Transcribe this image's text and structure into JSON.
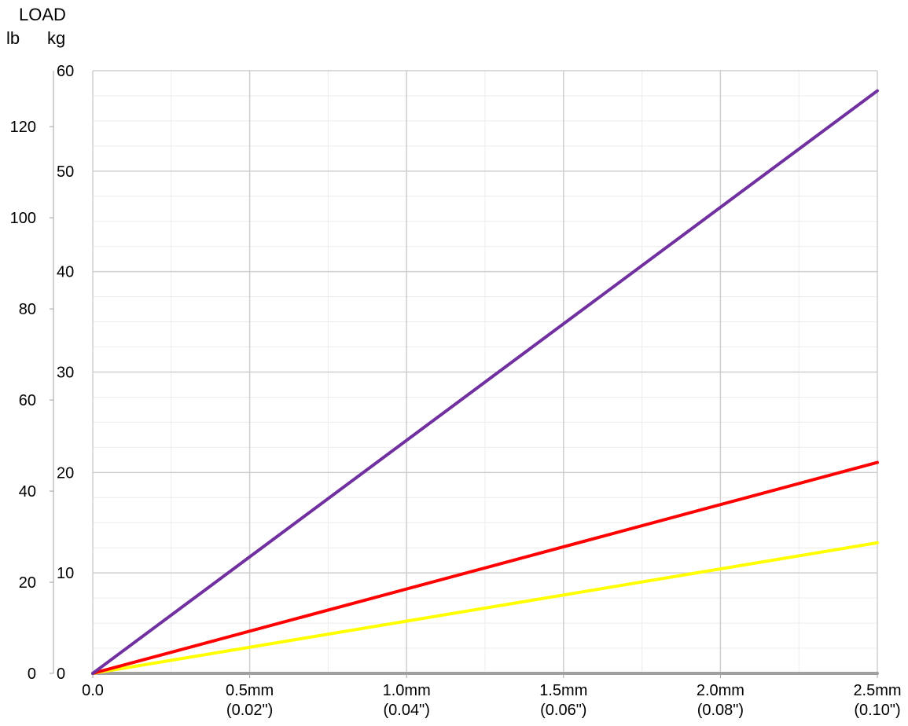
{
  "chart_data": {
    "type": "line",
    "title": "LOAD",
    "left_unit": "lb",
    "right_unit": "kg",
    "x": [
      0,
      2.5
    ],
    "xlim": [
      0,
      2.5
    ],
    "x_ticks": [
      {
        "value": 0.0,
        "label": "0.0",
        "sublabel": ""
      },
      {
        "value": 0.5,
        "label": "0.5mm",
        "sublabel": "(0.02\")"
      },
      {
        "value": 1.0,
        "label": "1.0mm",
        "sublabel": "(0.04\")"
      },
      {
        "value": 1.5,
        "label": "1.5mm",
        "sublabel": "(0.06\")"
      },
      {
        "value": 2.0,
        "label": "2.0mm",
        "sublabel": "(0.08\")"
      },
      {
        "value": 2.5,
        "label": "2.5mm",
        "sublabel": "(0.10\")"
      }
    ],
    "kg_ylim": [
      0,
      60
    ],
    "kg_ticks": [
      0,
      10,
      20,
      30,
      40,
      50,
      60
    ],
    "lb_ylim": [
      0,
      132.28
    ],
    "lb_ticks": [
      0,
      20,
      40,
      60,
      80,
      100,
      120
    ],
    "grid": true,
    "series": [
      {
        "color": "#7030a0",
        "values": [
          0,
          58
        ]
      },
      {
        "color": "#ff0000",
        "values": [
          0,
          21
        ]
      },
      {
        "color": "#ffff00",
        "values": [
          0,
          13
        ]
      },
      {
        "color": "#a0a0a0",
        "values": [
          0,
          0
        ]
      }
    ]
  }
}
